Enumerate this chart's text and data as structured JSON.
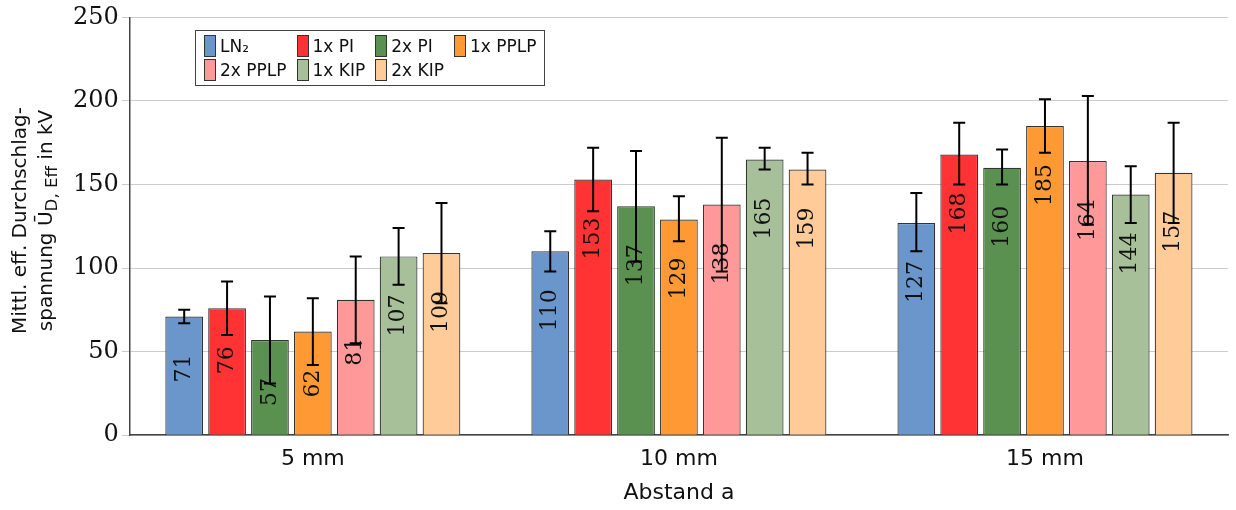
{
  "chart_data": {
    "type": "bar",
    "xlabel": "Abstand a",
    "ylabel": "Mittl. eff. Durchschlag-spannung Ū$_{D, Eff}$ in kV",
    "categories": [
      "5 mm",
      "10 mm",
      "15 mm"
    ],
    "ylim": [
      0,
      250
    ],
    "yticks": [
      0,
      50,
      100,
      150,
      200,
      250
    ],
    "grid": "y",
    "legend": "top left",
    "data_labels": true,
    "series": [
      {
        "name": "LN₂",
        "color": "#6a96cc",
        "values": [
          71,
          110,
          127
        ],
        "errors": [
          [
            67,
            75
          ],
          [
            98,
            122
          ],
          [
            110,
            145
          ]
        ]
      },
      {
        "name": "1x PI",
        "color": "#ff3333",
        "values": [
          76,
          153,
          168
        ],
        "errors": [
          [
            60,
            92
          ],
          [
            134,
            172
          ],
          [
            150,
            187
          ]
        ]
      },
      {
        "name": "2x PI",
        "color": "#5a9150",
        "values": [
          57,
          137,
          160
        ],
        "errors": [
          [
            31,
            83
          ],
          [
            104,
            170
          ],
          [
            150,
            171
          ]
        ]
      },
      {
        "name": "1x PPLP",
        "color": "#ff9933",
        "values": [
          62,
          129,
          185
        ],
        "errors": [
          [
            42,
            82
          ],
          [
            116,
            143
          ],
          [
            169,
            201
          ]
        ]
      },
      {
        "name": "2x PPLP",
        "color": "#ff9999",
        "values": [
          81,
          138,
          164
        ],
        "errors": [
          [
            55,
            107
          ],
          [
            98,
            178
          ],
          [
            126,
            203
          ]
        ]
      },
      {
        "name": "1x KIP",
        "color": "#a8c09a",
        "values": [
          107,
          165,
          144
        ],
        "errors": [
          [
            90,
            124
          ],
          [
            159,
            172
          ],
          [
            127,
            161
          ]
        ]
      },
      {
        "name": "2x KIP",
        "color": "#ffcc99",
        "values": [
          109,
          159,
          157
        ],
        "errors": [
          [
            79,
            139
          ],
          [
            150,
            169
          ],
          [
            127,
            187
          ]
        ]
      }
    ]
  }
}
